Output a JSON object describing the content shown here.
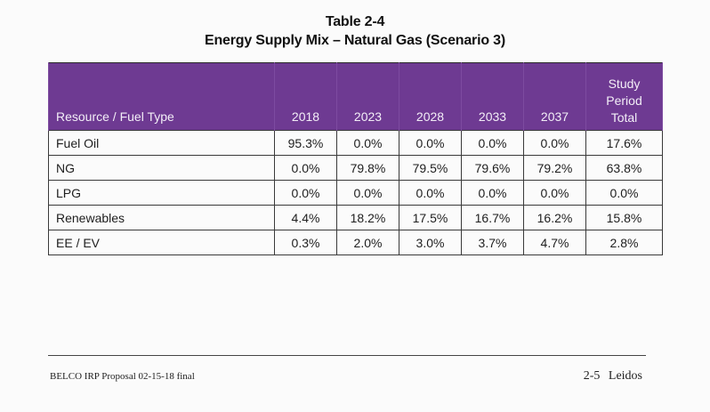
{
  "title": {
    "line1": "Table 2-4",
    "line2": "Energy Supply Mix – Natural Gas (Scenario 3)"
  },
  "table": {
    "headers": {
      "resource": "Resource / Fuel Type",
      "y2018": "2018",
      "y2023": "2023",
      "y2028": "2028",
      "y2033": "2033",
      "y2037": "2037",
      "total_line1": "Study",
      "total_line2": "Period",
      "total_line3": "Total"
    },
    "rows": [
      {
        "label": "Fuel Oil",
        "values": [
          "95.3%",
          "0.0%",
          "0.0%",
          "0.0%",
          "0.0%",
          "17.6%"
        ]
      },
      {
        "label": "NG",
        "values": [
          "0.0%",
          "79.8%",
          "79.5%",
          "79.6%",
          "79.2%",
          "63.8%"
        ]
      },
      {
        "label": "LPG",
        "values": [
          "0.0%",
          "0.0%",
          "0.0%",
          "0.0%",
          "0.0%",
          "0.0%"
        ]
      },
      {
        "label": "Renewables",
        "values": [
          "4.4%",
          "18.2%",
          "17.5%",
          "16.7%",
          "16.2%",
          "15.8%"
        ]
      },
      {
        "label": "EE / EV",
        "values": [
          "0.3%",
          "2.0%",
          "3.0%",
          "3.7%",
          "4.7%",
          "2.8%"
        ]
      }
    ]
  },
  "footer": {
    "left": "BELCO IRP Proposal 02-15-18 final",
    "right": "2-5 Leidos"
  },
  "colors": {
    "header_bg": "#6e3a92",
    "header_text": "#f3eef7"
  }
}
